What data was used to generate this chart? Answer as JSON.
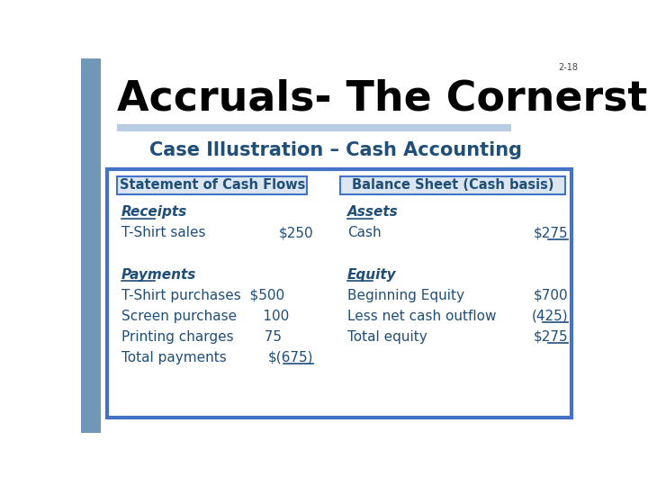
{
  "slide_number": "2-18",
  "title": "Accruals- The Cornerstone",
  "subtitle": "Case Illustration – Cash Accounting",
  "bg_color": "#ffffff",
  "left_bar_color": "#7096b8",
  "title_color": "#000000",
  "subtitle_color": "#1f4e79",
  "title_bar_color": "#b8cce4",
  "outer_box_color": "#4472c4",
  "inner_box_color": "#dce6f1",
  "text_color": "#1f4e79",
  "col1_header": "Statement of Cash Flows",
  "col2_header": "Balance Sheet (Cash basis)",
  "left_rows": [
    {
      "label": "Receipts",
      "value": "",
      "italic": true,
      "underline_label": true,
      "underline_value": false
    },
    {
      "label": "T-Shirt sales",
      "value": "$250",
      "italic": false,
      "underline_label": false,
      "underline_value": false
    },
    {
      "label": "",
      "value": "",
      "italic": false,
      "underline_label": false,
      "underline_value": false
    },
    {
      "label": "Payments",
      "value": "",
      "italic": true,
      "underline_label": true,
      "underline_value": false
    },
    {
      "label": "T-Shirt purchases  $500",
      "value": "",
      "italic": false,
      "underline_label": false,
      "underline_value": false
    },
    {
      "label": "Screen purchase      100",
      "value": "",
      "italic": false,
      "underline_label": false,
      "underline_value": false
    },
    {
      "label": "Printing charges       75",
      "value": "",
      "italic": false,
      "underline_label": false,
      "underline_value": false
    },
    {
      "label": "Total payments",
      "value": "$(675)",
      "italic": false,
      "underline_label": false,
      "underline_value": true
    }
  ],
  "right_rows": [
    {
      "label": "Assets",
      "value": "",
      "italic": true,
      "underline_label": true,
      "underline_value": false
    },
    {
      "label": "Cash",
      "value": "$275",
      "italic": false,
      "underline_label": false,
      "underline_value": true
    },
    {
      "label": "",
      "value": "",
      "italic": false,
      "underline_label": false,
      "underline_value": false
    },
    {
      "label": "Equity",
      "value": "",
      "italic": true,
      "underline_label": true,
      "underline_value": false
    },
    {
      "label": "Beginning Equity",
      "value": "$700",
      "italic": false,
      "underline_label": false,
      "underline_value": false
    },
    {
      "label": "Less net cash outflow",
      "value": "(425)",
      "italic": false,
      "underline_label": false,
      "underline_value": true
    },
    {
      "label": "Total equity",
      "value": "$275",
      "italic": false,
      "underline_label": false,
      "underline_value": true
    }
  ]
}
